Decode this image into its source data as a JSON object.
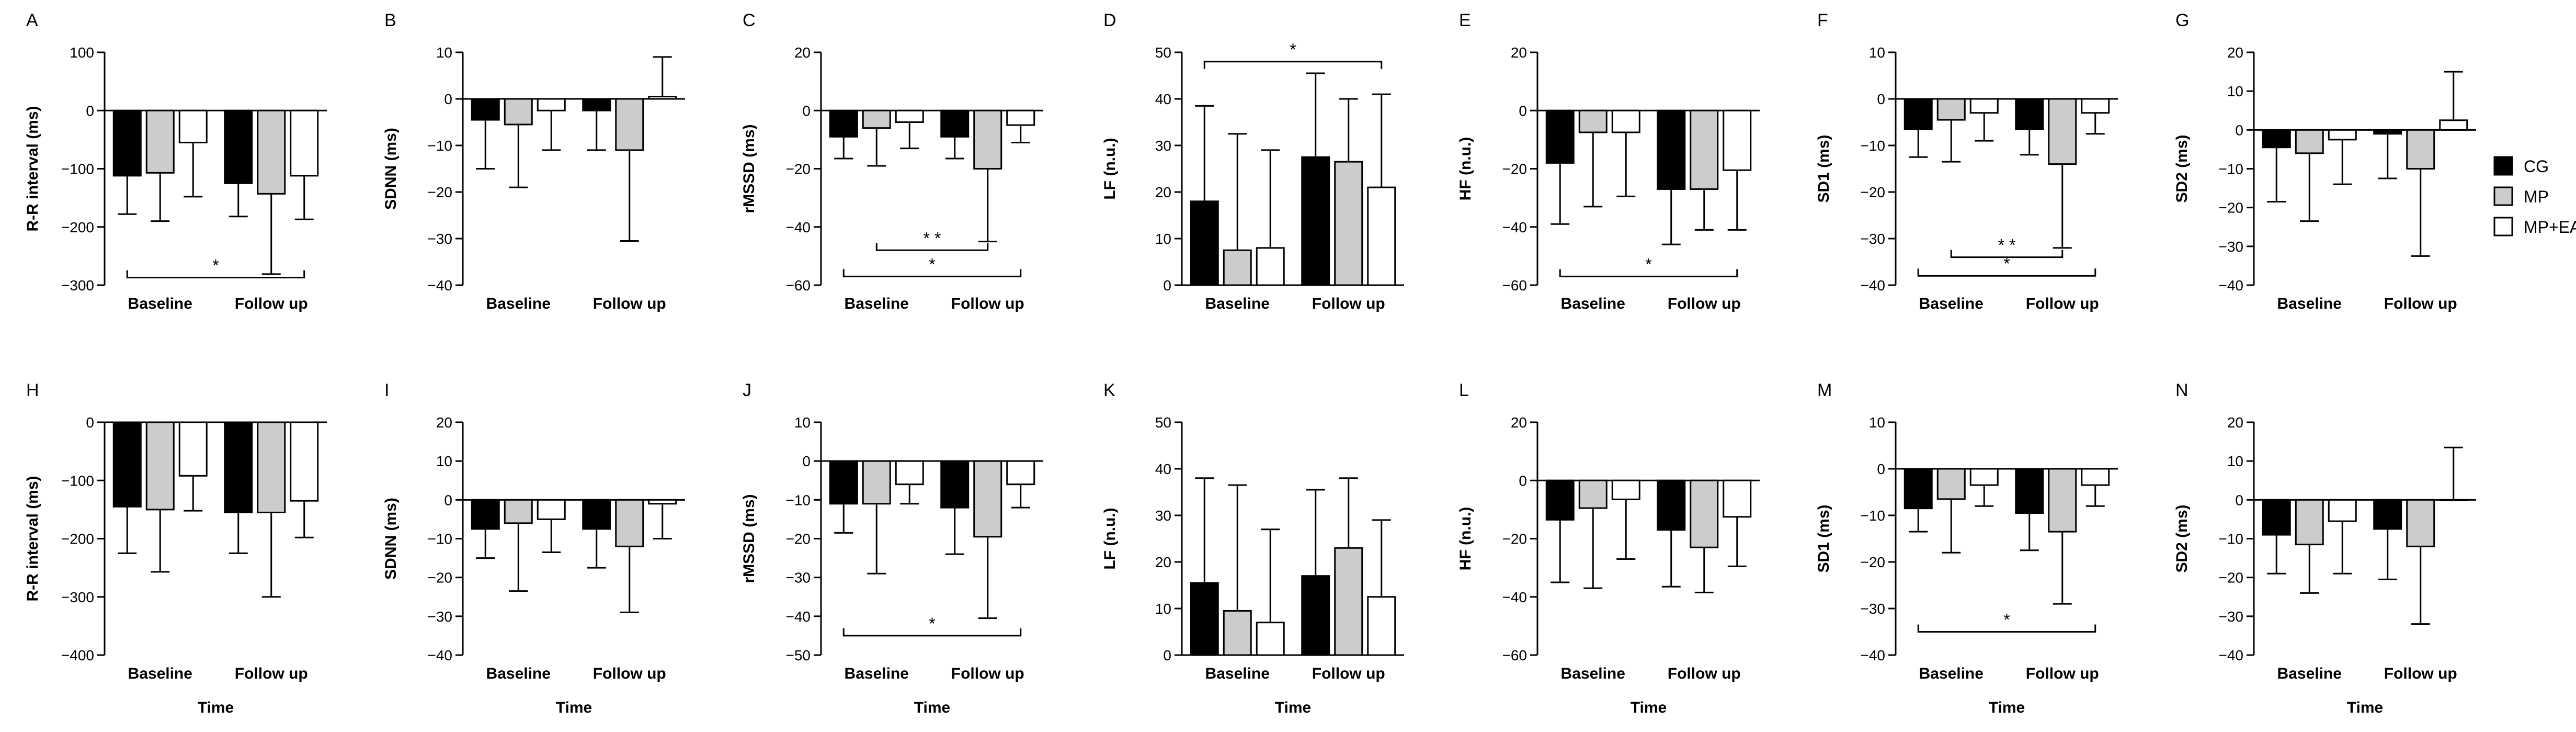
{
  "figure": {
    "xlabel": "Time",
    "legend": {
      "placement": "right",
      "series": [
        {
          "name": "CG",
          "color": "#000000"
        },
        {
          "name": "MP",
          "color": "#cccccc"
        },
        {
          "name": "MP+EA",
          "color": "#ffffff"
        }
      ]
    }
  },
  "chart_data": [
    {
      "id": "A",
      "type": "bar",
      "ylabel": "R-R interval (ms)",
      "ylim": [
        -300,
        100
      ],
      "yticks": [
        100,
        0,
        -100,
        -200,
        -300
      ],
      "categories": [
        "Baseline",
        "Follow up"
      ],
      "series": [
        {
          "name": "CG",
          "values": [
            -112,
            -125
          ],
          "errors": [
            66,
            57
          ]
        },
        {
          "name": "MP",
          "values": [
            -107,
            -143
          ],
          "errors": [
            83,
            138
          ]
        },
        {
          "name": "MP+EA",
          "values": [
            -55,
            -112
          ],
          "errors": [
            93,
            75
          ]
        }
      ],
      "annotations": [
        {
          "text": "*",
          "from": [
            0,
            0
          ],
          "to": [
            1,
            2
          ],
          "y": -287,
          "ticks": "up"
        }
      ]
    },
    {
      "id": "B",
      "type": "bar",
      "ylabel": "SDNN (ms)",
      "ylim": [
        -40,
        10
      ],
      "yticks": [
        10,
        0,
        -10,
        -20,
        -30,
        -40
      ],
      "categories": [
        "Baseline",
        "Follow up"
      ],
      "series": [
        {
          "name": "CG",
          "values": [
            -4.5,
            -2.5
          ],
          "errors": [
            10.5,
            8.5
          ]
        },
        {
          "name": "MP",
          "values": [
            -5.5,
            -11
          ],
          "errors": [
            13.5,
            19.5
          ]
        },
        {
          "name": "MP+EA",
          "values": [
            -2.5,
            0.5
          ],
          "errors": [
            8.5,
            8.5
          ]
        }
      ],
      "annotations": []
    },
    {
      "id": "C",
      "type": "bar",
      "ylabel": "rMSSD (ms)",
      "ylim": [
        -60,
        20
      ],
      "yticks": [
        20,
        0,
        -20,
        -40,
        -60
      ],
      "categories": [
        "Baseline",
        "Follow up"
      ],
      "series": [
        {
          "name": "CG",
          "values": [
            -9,
            -9
          ],
          "errors": [
            7.5,
            7.5
          ]
        },
        {
          "name": "MP",
          "values": [
            -6,
            -20
          ],
          "errors": [
            13,
            25
          ]
        },
        {
          "name": "MP+EA",
          "values": [
            -4,
            -5
          ],
          "errors": [
            9,
            6
          ]
        }
      ],
      "annotations": [
        {
          "text": "* *",
          "from": [
            0,
            1
          ],
          "to": [
            1,
            1
          ],
          "y": -48,
          "ticks": "up"
        },
        {
          "text": "*",
          "from": [
            0,
            0
          ],
          "to": [
            1,
            2
          ],
          "y": -57,
          "ticks": "up"
        }
      ]
    },
    {
      "id": "D",
      "type": "bar",
      "ylabel": "LF (n.u.)",
      "ylim": [
        0,
        50
      ],
      "yticks": [
        50,
        40,
        30,
        20,
        10,
        0
      ],
      "categories": [
        "Baseline",
        "Follow up"
      ],
      "series": [
        {
          "name": "CG",
          "values": [
            18,
            27.5
          ],
          "errors": [
            20.5,
            18
          ]
        },
        {
          "name": "MP",
          "values": [
            7.5,
            26.5
          ],
          "errors": [
            25,
            13.5
          ]
        },
        {
          "name": "MP+EA",
          "values": [
            8,
            21
          ],
          "errors": [
            21,
            20
          ]
        }
      ],
      "annotations": [
        {
          "text": "*",
          "from": [
            0,
            0
          ],
          "to": [
            1,
            2
          ],
          "y": 48,
          "ticks": "down"
        }
      ]
    },
    {
      "id": "E",
      "type": "bar",
      "ylabel": "HF (n.u.)",
      "ylim": [
        -60,
        20
      ],
      "yticks": [
        20,
        0,
        -20,
        -40,
        -60
      ],
      "categories": [
        "Baseline",
        "Follow up"
      ],
      "series": [
        {
          "name": "CG",
          "values": [
            -18,
            -27
          ],
          "errors": [
            21,
            19
          ]
        },
        {
          "name": "MP",
          "values": [
            -7.5,
            -27
          ],
          "errors": [
            25.5,
            14
          ]
        },
        {
          "name": "MP+EA",
          "values": [
            -7.5,
            -20.5
          ],
          "errors": [
            22,
            20.5
          ]
        }
      ],
      "annotations": [
        {
          "text": "*",
          "from": [
            0,
            0
          ],
          "to": [
            1,
            2
          ],
          "y": -57,
          "ticks": "up"
        }
      ]
    },
    {
      "id": "F",
      "type": "bar",
      "ylabel": "SD1 (ms)",
      "ylim": [
        -40,
        10
      ],
      "yticks": [
        10,
        0,
        -10,
        -20,
        -30,
        -40
      ],
      "categories": [
        "Baseline",
        "Follow up"
      ],
      "series": [
        {
          "name": "CG",
          "values": [
            -6.5,
            -6.5
          ],
          "errors": [
            6,
            5.5
          ]
        },
        {
          "name": "MP",
          "values": [
            -4.5,
            -14
          ],
          "errors": [
            9,
            18
          ]
        },
        {
          "name": "MP+EA",
          "values": [
            -3,
            -3
          ],
          "errors": [
            6,
            4.5
          ]
        }
      ],
      "annotations": [
        {
          "text": "* *",
          "from": [
            0,
            1
          ],
          "to": [
            1,
            1
          ],
          "y": -34,
          "ticks": "up"
        },
        {
          "text": "*",
          "from": [
            0,
            0
          ],
          "to": [
            1,
            2
          ],
          "y": -38,
          "ticks": "up"
        }
      ]
    },
    {
      "id": "G",
      "type": "bar",
      "ylabel": "SD2 (ms)",
      "ylim": [
        -40,
        20
      ],
      "yticks": [
        20,
        10,
        0,
        -10,
        -20,
        -30,
        -40
      ],
      "categories": [
        "Baseline",
        "Follow up"
      ],
      "series": [
        {
          "name": "CG",
          "values": [
            -4.5,
            -1
          ],
          "errors": [
            14,
            11.5
          ]
        },
        {
          "name": "MP",
          "values": [
            -6,
            -10
          ],
          "errors": [
            17.5,
            22.5
          ]
        },
        {
          "name": "MP+EA",
          "values": [
            -2.5,
            2.5
          ],
          "errors": [
            11.5,
            12.5
          ]
        }
      ],
      "annotations": []
    },
    {
      "id": "H",
      "type": "bar",
      "ylabel": "R-R interval (ms)",
      "ylim": [
        -400,
        0
      ],
      "yticks": [
        0,
        -100,
        -200,
        -300,
        -400
      ],
      "categories": [
        "Baseline",
        "Follow up"
      ],
      "series": [
        {
          "name": "CG",
          "values": [
            -145,
            -155
          ],
          "errors": [
            80,
            70
          ]
        },
        {
          "name": "MP",
          "values": [
            -150,
            -155
          ],
          "errors": [
            107,
            145
          ]
        },
        {
          "name": "MP+EA",
          "values": [
            -92,
            -135
          ],
          "errors": [
            60,
            63
          ]
        }
      ],
      "annotations": []
    },
    {
      "id": "I",
      "type": "bar",
      "ylabel": "SDNN (ms)",
      "ylim": [
        -40,
        20
      ],
      "yticks": [
        20,
        10,
        0,
        -10,
        -20,
        -30,
        -40
      ],
      "categories": [
        "Baseline",
        "Follow up"
      ],
      "series": [
        {
          "name": "CG",
          "values": [
            -7.5,
            -7.5
          ],
          "errors": [
            7.5,
            10
          ]
        },
        {
          "name": "MP",
          "values": [
            -6,
            -12
          ],
          "errors": [
            17.5,
            17
          ]
        },
        {
          "name": "MP+EA",
          "values": [
            -5,
            -1
          ],
          "errors": [
            8.5,
            9
          ]
        }
      ],
      "annotations": []
    },
    {
      "id": "J",
      "type": "bar",
      "ylabel": "rMSSD (ms)",
      "ylim": [
        -50,
        10
      ],
      "yticks": [
        10,
        0,
        -10,
        -20,
        -30,
        -40,
        -50
      ],
      "categories": [
        "Baseline",
        "Follow up"
      ],
      "series": [
        {
          "name": "CG",
          "values": [
            -11,
            -12
          ],
          "errors": [
            7.5,
            12
          ]
        },
        {
          "name": "MP",
          "values": [
            -11,
            -19.5
          ],
          "errors": [
            18,
            21
          ]
        },
        {
          "name": "MP+EA",
          "values": [
            -6,
            -6
          ],
          "errors": [
            5,
            6
          ]
        }
      ],
      "annotations": [
        {
          "text": "*",
          "from": [
            0,
            0
          ],
          "to": [
            1,
            2
          ],
          "y": -45,
          "ticks": "up"
        }
      ]
    },
    {
      "id": "K",
      "type": "bar",
      "ylabel": "LF (n.u.)",
      "ylim": [
        0,
        50
      ],
      "yticks": [
        50,
        40,
        30,
        20,
        10,
        0
      ],
      "categories": [
        "Baseline",
        "Follow up"
      ],
      "series": [
        {
          "name": "CG",
          "values": [
            15.5,
            17
          ],
          "errors": [
            22.5,
            18.5
          ]
        },
        {
          "name": "MP",
          "values": [
            9.5,
            23
          ],
          "errors": [
            27,
            15
          ]
        },
        {
          "name": "MP+EA",
          "values": [
            7,
            12.5
          ],
          "errors": [
            20,
            16.5
          ]
        }
      ],
      "annotations": []
    },
    {
      "id": "L",
      "type": "bar",
      "ylabel": "HF (n.u.)",
      "ylim": [
        -60,
        20
      ],
      "yticks": [
        20,
        0,
        -20,
        -40,
        -60
      ],
      "categories": [
        "Baseline",
        "Follow up"
      ],
      "series": [
        {
          "name": "CG",
          "values": [
            -13.5,
            -17
          ],
          "errors": [
            21.5,
            19.5
          ]
        },
        {
          "name": "MP",
          "values": [
            -9.5,
            -23
          ],
          "errors": [
            27.5,
            15.5
          ]
        },
        {
          "name": "MP+EA",
          "values": [
            -6.5,
            -12.5
          ],
          "errors": [
            20.5,
            17
          ]
        }
      ],
      "annotations": []
    },
    {
      "id": "M",
      "type": "bar",
      "ylabel": "SD1 (ms)",
      "ylim": [
        -40,
        10
      ],
      "yticks": [
        10,
        0,
        -10,
        -20,
        -30,
        -40
      ],
      "categories": [
        "Baseline",
        "Follow up"
      ],
      "series": [
        {
          "name": "CG",
          "values": [
            -8.5,
            -9.5
          ],
          "errors": [
            5,
            8
          ]
        },
        {
          "name": "MP",
          "values": [
            -6.5,
            -13.5
          ],
          "errors": [
            11.5,
            15.5
          ]
        },
        {
          "name": "MP+EA",
          "values": [
            -3.5,
            -3.5
          ],
          "errors": [
            4.5,
            4.5
          ]
        }
      ],
      "annotations": [
        {
          "text": "*",
          "from": [
            0,
            0
          ],
          "to": [
            1,
            2
          ],
          "y": -35,
          "ticks": "up"
        }
      ]
    },
    {
      "id": "N",
      "type": "bar",
      "ylabel": "SD2 (ms)",
      "ylim": [
        -40,
        20
      ],
      "yticks": [
        20,
        10,
        0,
        -10,
        -20,
        -30,
        -40
      ],
      "categories": [
        "Baseline",
        "Follow up"
      ],
      "series": [
        {
          "name": "CG",
          "values": [
            -9,
            -7.5
          ],
          "errors": [
            10,
            13
          ]
        },
        {
          "name": "MP",
          "values": [
            -11.5,
            -12
          ],
          "errors": [
            12.5,
            20
          ]
        },
        {
          "name": "MP+EA",
          "values": [
            -5.5,
            0
          ],
          "errors": [
            13.5,
            13.5
          ]
        }
      ],
      "annotations": []
    }
  ]
}
